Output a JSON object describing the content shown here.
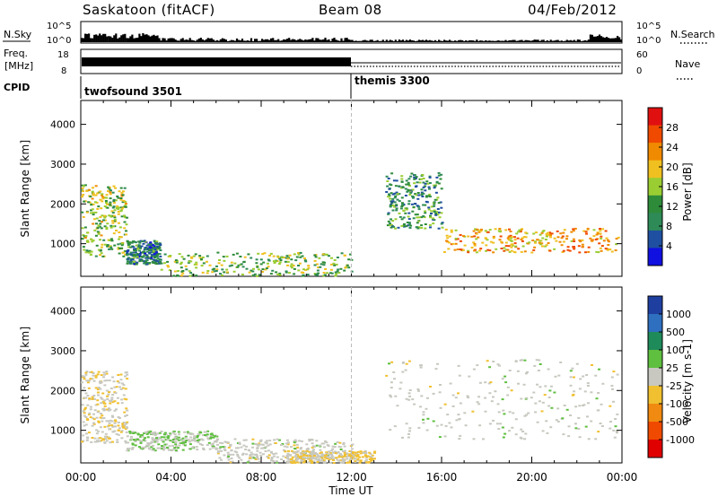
{
  "header": {
    "site": "Saskatoon (fitACF)",
    "beam": "Beam 08",
    "date": "04/Feb/2012"
  },
  "summary_panels": {
    "nsky_label": "N.Sky",
    "nsky_top": "10^5",
    "nsky_bottom": "10^0",
    "nsearch_label": "N.Search",
    "nsearch_top": "10^5",
    "nsearch_bottom": "10^0",
    "freq_label_1": "Freq.",
    "freq_label_2": "[MHz]",
    "freq_top": "18",
    "freq_bottom": "8",
    "nave_label": "Nave",
    "nave_top": "60",
    "nave_bottom": "0",
    "cpid_label": "CPID",
    "cpid_1": "twofsound 3501",
    "cpid_2": "themis 3300"
  },
  "x_axis": {
    "label": "Time UT",
    "ticks": [
      "00:00",
      "04:00",
      "08:00",
      "12:00",
      "16:00",
      "20:00",
      "00:00"
    ]
  },
  "power_colorbar": {
    "label": "Power [dB]",
    "ticks": [
      "28",
      "24",
      "20",
      "16",
      "12",
      "8",
      "4"
    ],
    "colors": [
      "#e01010",
      "#f04a00",
      "#f08a00",
      "#f0c020",
      "#9acd32",
      "#2e8b3a",
      "#2e8b57",
      "#1f4fa0",
      "#1010e0"
    ]
  },
  "velocity_colorbar": {
    "label": "Velocity [m s-1]",
    "ticks": [
      "1000",
      "500",
      "100",
      "25",
      "-25",
      "-100",
      "-500",
      "-1000"
    ],
    "colors": [
      "#1f3fa0",
      "#2f6fbf",
      "#1f8a5a",
      "#5fbf3f",
      "#c8c8c0",
      "#f0c030",
      "#f08a10",
      "#f04a00",
      "#e00000"
    ]
  },
  "chart_data": [
    {
      "type": "heatmap",
      "title": "Power",
      "xlabel": "Time UT",
      "ylabel": "Slant Range [km]",
      "xlim": [
        0,
        24
      ],
      "ylim": [
        180,
        4600
      ],
      "yticks": [
        1000,
        2000,
        3000,
        4000
      ],
      "colorbar_label": "Power [dB]",
      "colorbar_range": [
        0,
        32
      ],
      "bands": [
        {
          "t": [
            0.0,
            2.0
          ],
          "r": [
            700,
            2500
          ],
          "level": 16
        },
        {
          "t": [
            2.0,
            3.5
          ],
          "r": [
            500,
            1100
          ],
          "level": 8
        },
        {
          "t": [
            3.5,
            12.0
          ],
          "r": [
            200,
            800
          ],
          "level": 14
        },
        {
          "t": [
            13.5,
            16.0
          ],
          "r": [
            1400,
            2800
          ],
          "level": 10
        },
        {
          "t": [
            16.0,
            23.8
          ],
          "r": [
            800,
            1400
          ],
          "level": 22
        }
      ]
    },
    {
      "type": "heatmap",
      "title": "Velocity",
      "xlabel": "Time UT",
      "ylabel": "Slant Range [km]",
      "xlim": [
        0,
        24
      ],
      "ylim": [
        180,
        4600
      ],
      "yticks": [
        1000,
        2000,
        3000,
        4000
      ],
      "colorbar_label": "Velocity [m s-1]",
      "colorbar_range": [
        -1000,
        1000
      ],
      "bands": [
        {
          "t": [
            0.0,
            2.0
          ],
          "r": [
            700,
            2500
          ],
          "velocity": -100
        },
        {
          "t": [
            2.0,
            6.0
          ],
          "r": [
            500,
            1000
          ],
          "velocity": 100
        },
        {
          "t": [
            6.0,
            12.0
          ],
          "r": [
            200,
            800
          ],
          "velocity": 0
        },
        {
          "t": [
            9.0,
            13.0
          ],
          "r": [
            200,
            500
          ],
          "velocity": -100
        },
        {
          "t": [
            13.5,
            23.8
          ],
          "r": [
            800,
            2800
          ],
          "velocity": 0
        }
      ]
    }
  ]
}
